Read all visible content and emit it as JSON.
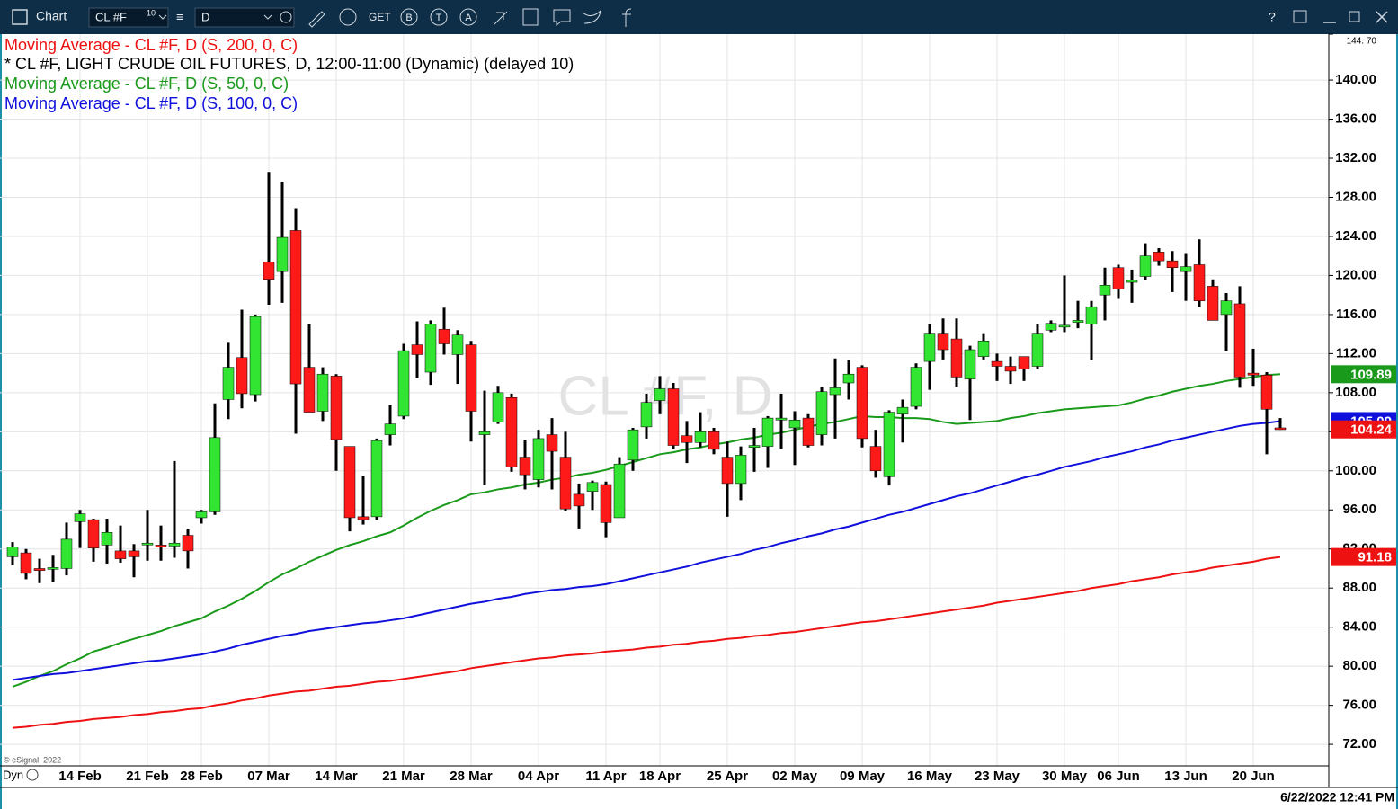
{
  "ui": {
    "toolbar_title": "Chart",
    "symbol": "CL #F",
    "symbol_badge": "10",
    "interval": "D",
    "get": "GET",
    "b": "B",
    "t": "T",
    "a": "A",
    "help": "?",
    "watermark": "CL #F, D",
    "copyright": "© eSignal, 2022",
    "mode": "Dyn",
    "timestamp": "6/22/2022 12:41 PM"
  },
  "chart_data": {
    "type": "candlestick",
    "ylim": [
      69.8,
      144.7
    ],
    "yticks": [
      {
        "value": 72,
        "label": "72.00"
      },
      {
        "value": 76,
        "label": "76.00"
      },
      {
        "value": 80,
        "label": "80.00"
      },
      {
        "value": 84,
        "label": "84.00"
      },
      {
        "value": 88,
        "label": "88.00"
      },
      {
        "value": 92,
        "label": "92.00"
      },
      {
        "value": 96,
        "label": "96.00"
      },
      {
        "value": 100,
        "label": "100.00"
      },
      {
        "value": 104,
        "label": "104.00"
      },
      {
        "value": 108,
        "label": "108.00"
      },
      {
        "value": 112,
        "label": "112.00"
      },
      {
        "value": 116,
        "label": "116.00"
      },
      {
        "value": 120,
        "label": "120.00"
      },
      {
        "value": 124,
        "label": "124.00"
      },
      {
        "value": 128,
        "label": "128.00"
      },
      {
        "value": 132,
        "label": "132.00"
      },
      {
        "value": 136,
        "label": "136.00"
      },
      {
        "value": 140,
        "label": "140.00"
      },
      {
        "value": 144.7,
        "label": "144. 70"
      }
    ],
    "grid": true,
    "categories": [
      null,
      null,
      null,
      null,
      null,
      "14 Feb",
      null,
      null,
      null,
      null,
      "21 Feb",
      null,
      null,
      null,
      "28 Feb",
      null,
      null,
      null,
      null,
      "07 Mar",
      null,
      null,
      null,
      null,
      "14 Mar",
      null,
      null,
      null,
      null,
      "21 Mar",
      null,
      null,
      null,
      null,
      "28 Mar",
      null,
      null,
      null,
      null,
      "04 Apr",
      null,
      null,
      null,
      null,
      "11 Apr",
      null,
      null,
      null,
      "18 Apr",
      null,
      null,
      null,
      null,
      "25 Apr",
      null,
      null,
      null,
      null,
      "02 May",
      null,
      null,
      null,
      null,
      "09 May",
      null,
      null,
      null,
      null,
      "16 May",
      null,
      null,
      null,
      null,
      "23 May",
      null,
      null,
      null,
      null,
      "30 May",
      null,
      null,
      null,
      "06 Jun",
      null,
      null,
      null,
      null,
      "13 Jun",
      null,
      null,
      null,
      null,
      "20 Jun",
      null,
      null
    ],
    "ohlc": {
      "name": "* CL #F, LIGHT CRUDE OIL FUTURES, D, 12:00-11:00 (Dynamic) (delayed 10)",
      "up_color": "#33e533",
      "down_color": "#ff1a1a",
      "wick_color": "#000000",
      "open": [
        91.2,
        91.6,
        90.0,
        90.0,
        90.0,
        94.8,
        95.0,
        92.4,
        91.8,
        91.8,
        92.5,
        92.4,
        92.3,
        93.4,
        95.2,
        95.8,
        107.3,
        111.6,
        107.8,
        121.4,
        120.4,
        124.6,
        110.6,
        106.1,
        109.7,
        102.5,
        95.3,
        95.3,
        103.7,
        105.6,
        112.9,
        110.1,
        114.5,
        111.9,
        112.9,
        103.7,
        105.0,
        107.5,
        101.4,
        99.1,
        103.7,
        101.4,
        97.6,
        97.9,
        98.6,
        95.2,
        101.1,
        104.5,
        107.2,
        108.4,
        103.6,
        102.9,
        104.0,
        101.4,
        98.7,
        102.4,
        102.5,
        105.2,
        104.4,
        105.4,
        103.7,
        107.8,
        109.0,
        110.6,
        102.5,
        99.4,
        105.8,
        106.6,
        111.2,
        114.0,
        113.5,
        109.4,
        111.7,
        111.2,
        110.7,
        111.7,
        110.7,
        114.4,
        114.9,
        115.2,
        115.0,
        118.0,
        120.8,
        119.3,
        119.9,
        122.4,
        121.5,
        120.4,
        121.1,
        118.9,
        116.0,
        117.1,
        110.0,
        109.8,
        104.4
      ],
      "high": [
        92.7,
        92.0,
        91.0,
        91.4,
        94.7,
        96.0,
        95.1,
        95.1,
        94.4,
        92.5,
        96.0,
        94.4,
        101.0,
        94.0,
        96.0,
        106.9,
        113.1,
        116.5,
        116.0,
        130.6,
        129.6,
        126.9,
        115.0,
        110.6,
        109.9,
        102.5,
        99.5,
        103.3,
        106.7,
        113.0,
        115.3,
        115.4,
        116.7,
        114.4,
        113.3,
        108.2,
        108.7,
        107.9,
        103.2,
        104.2,
        105.4,
        104.0,
        98.7,
        99.0,
        98.9,
        101.4,
        104.4,
        107.9,
        109.7,
        109.0,
        105.1,
        106.0,
        104.4,
        103.0,
        102.5,
        104.4,
        105.6,
        107.9,
        106.1,
        105.8,
        108.6,
        111.5,
        111.3,
        110.8,
        104.2,
        106.2,
        107.3,
        111.0,
        115.0,
        115.6,
        115.6,
        112.8,
        114.0,
        112.0,
        111.7,
        111.7,
        115.0,
        115.4,
        120.0,
        117.4,
        117.4,
        120.8,
        121.1,
        120.6,
        123.3,
        122.8,
        122.5,
        122.2,
        123.7,
        119.6,
        118.2,
        118.9,
        112.5,
        110.1,
        105.4
      ],
      "low": [
        90.4,
        88.9,
        88.5,
        88.6,
        89.3,
        92.1,
        90.7,
        90.5,
        90.6,
        89.1,
        90.8,
        90.8,
        91.1,
        90.0,
        94.6,
        95.5,
        105.3,
        106.4,
        107.1,
        117.0,
        117.2,
        103.8,
        106.0,
        105.1,
        100.0,
        93.8,
        94.5,
        95.0,
        102.6,
        105.3,
        109.5,
        108.8,
        111.9,
        108.9,
        103.0,
        98.6,
        104.8,
        99.9,
        98.1,
        98.3,
        98.1,
        95.9,
        94.1,
        96.0,
        93.2,
        95.2,
        100.0,
        103.3,
        105.8,
        102.2,
        100.8,
        102.4,
        101.7,
        95.3,
        97.0,
        99.9,
        100.3,
        102.2,
        100.6,
        102.4,
        102.6,
        103.3,
        107.3,
        102.4,
        99.3,
        98.5,
        102.9,
        106.3,
        108.3,
        111.4,
        108.6,
        105.2,
        111.4,
        109.2,
        108.9,
        109.2,
        110.4,
        114.2,
        114.2,
        114.6,
        111.3,
        115.4,
        117.6,
        117.2,
        119.5,
        121.0,
        118.3,
        117.4,
        116.8,
        115.4,
        112.3,
        108.5,
        108.7,
        101.7,
        104.2
      ],
      "close": [
        92.2,
        89.5,
        89.8,
        90.1,
        93.0,
        95.6,
        92.1,
        93.7,
        91.0,
        91.2,
        92.6,
        92.2,
        92.6,
        91.8,
        95.8,
        103.4,
        110.6,
        107.9,
        115.8,
        119.6,
        123.9,
        108.9,
        106.0,
        109.9,
        103.2,
        95.2,
        95.0,
        103.1,
        104.8,
        112.3,
        111.9,
        115.0,
        113.0,
        113.9,
        106.1,
        104.0,
        108.0,
        100.4,
        99.6,
        103.3,
        102.0,
        96.1,
        96.4,
        98.8,
        94.7,
        100.7,
        104.2,
        107.0,
        108.4,
        102.6,
        102.9,
        104.0,
        102.2,
        98.7,
        101.6,
        102.6,
        105.4,
        105.4,
        105.2,
        102.6,
        108.1,
        108.5,
        109.9,
        103.3,
        100.0,
        106.0,
        106.5,
        110.6,
        114.0,
        112.4,
        109.6,
        112.4,
        113.3,
        110.7,
        110.2,
        110.4,
        114.0,
        115.1,
        114.9,
        115.4,
        116.8,
        119.0,
        118.6,
        119.5,
        122.0,
        121.5,
        120.8,
        120.9,
        117.4,
        115.4,
        117.4,
        109.6,
        109.8,
        106.3,
        104.24
      ]
    },
    "moving_averages": [
      {
        "name": "Moving Average - CL #F, D (S, 200, 0, C)",
        "color": "#ee1111",
        "values": [
          73.7,
          73.8,
          74.0,
          74.1,
          74.3,
          74.4,
          74.6,
          74.7,
          74.8,
          75.0,
          75.1,
          75.3,
          75.4,
          75.6,
          75.7,
          76.0,
          76.2,
          76.5,
          76.7,
          77.0,
          77.2,
          77.4,
          77.5,
          77.7,
          77.9,
          78.0,
          78.2,
          78.4,
          78.5,
          78.7,
          78.9,
          79.1,
          79.3,
          79.5,
          79.8,
          80.0,
          80.2,
          80.4,
          80.6,
          80.8,
          80.9,
          81.1,
          81.2,
          81.3,
          81.5,
          81.6,
          81.7,
          81.9,
          82.0,
          82.2,
          82.3,
          82.5,
          82.6,
          82.8,
          82.9,
          83.1,
          83.2,
          83.4,
          83.5,
          83.7,
          83.9,
          84.1,
          84.3,
          84.5,
          84.6,
          84.8,
          85.0,
          85.2,
          85.4,
          85.6,
          85.8,
          86.0,
          86.2,
          86.5,
          86.7,
          86.9,
          87.1,
          87.3,
          87.5,
          87.7,
          88.0,
          88.2,
          88.4,
          88.7,
          88.9,
          89.1,
          89.4,
          89.6,
          89.8,
          90.1,
          90.3,
          90.5,
          90.7,
          91.0,
          91.18
        ]
      },
      {
        "name": "Moving Average - CL #F, D (S, 50, 0, C)",
        "color": "#1a9a1a",
        "values": [
          77.9,
          78.4,
          79.0,
          79.5,
          80.2,
          80.8,
          81.5,
          81.9,
          82.4,
          82.8,
          83.2,
          83.6,
          84.1,
          84.5,
          84.9,
          85.6,
          86.2,
          86.9,
          87.7,
          88.6,
          89.4,
          90.0,
          90.7,
          91.3,
          91.9,
          92.4,
          92.8,
          93.3,
          93.7,
          94.4,
          95.2,
          95.9,
          96.5,
          97.0,
          97.6,
          97.8,
          98.1,
          98.3,
          98.6,
          98.8,
          99.1,
          99.3,
          99.6,
          99.8,
          100.1,
          100.5,
          100.9,
          101.3,
          101.7,
          101.9,
          102.2,
          102.4,
          102.7,
          102.9,
          103.2,
          103.4,
          103.7,
          103.9,
          104.2,
          104.5,
          104.8,
          105.0,
          105.3,
          105.6,
          105.5,
          105.5,
          105.4,
          105.4,
          105.3,
          105.0,
          104.8,
          104.9,
          105.0,
          105.1,
          105.4,
          105.6,
          105.9,
          106.1,
          106.3,
          106.4,
          106.5,
          106.6,
          106.7,
          107.0,
          107.4,
          107.7,
          108.1,
          108.4,
          108.7,
          108.9,
          109.2,
          109.4,
          109.6,
          109.8,
          109.89
        ]
      },
      {
        "name": "Moving Average - CL #F, D (S, 100, 0, C)",
        "color": "#1010dd",
        "values": [
          78.6,
          78.8,
          79.0,
          79.2,
          79.3,
          79.5,
          79.7,
          79.9,
          80.1,
          80.3,
          80.5,
          80.6,
          80.8,
          81.0,
          81.2,
          81.5,
          81.8,
          82.2,
          82.5,
          82.8,
          83.1,
          83.3,
          83.6,
          83.8,
          84.0,
          84.2,
          84.4,
          84.5,
          84.7,
          84.9,
          85.2,
          85.5,
          85.8,
          86.1,
          86.4,
          86.6,
          86.9,
          87.1,
          87.4,
          87.6,
          87.8,
          87.9,
          88.1,
          88.2,
          88.4,
          88.7,
          89.0,
          89.3,
          89.6,
          89.9,
          90.2,
          90.6,
          90.9,
          91.2,
          91.5,
          91.9,
          92.2,
          92.6,
          92.9,
          93.3,
          93.6,
          94.0,
          94.3,
          94.7,
          95.1,
          95.5,
          95.8,
          96.2,
          96.6,
          97.0,
          97.4,
          97.7,
          98.1,
          98.5,
          98.9,
          99.3,
          99.6,
          100.0,
          100.4,
          100.7,
          101.0,
          101.4,
          101.7,
          102.0,
          102.4,
          102.7,
          103.1,
          103.4,
          103.7,
          104.0,
          104.3,
          104.6,
          104.8,
          104.9,
          105.09
        ]
      }
    ]
  }
}
